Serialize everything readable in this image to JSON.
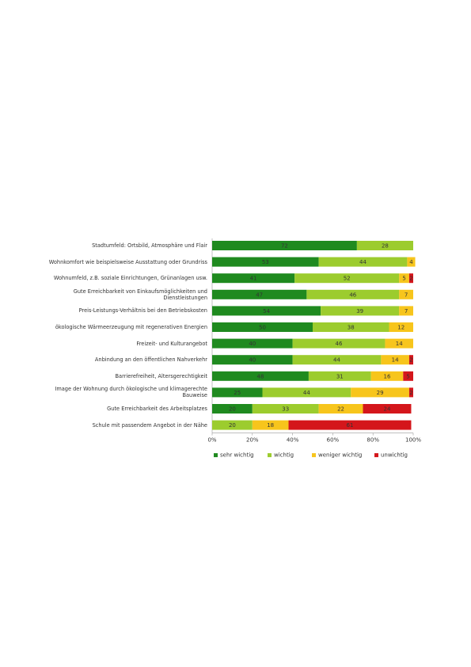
{
  "chart_data": {
    "type": "stacked-bar-horizontal",
    "categories": [
      "Stadtumfeld: Ortsbild, Atmosphäre und Flair",
      "Wohnkomfort wie beispielsweise Ausstattung oder Grundriss",
      "Wohnumfeld, z.B. soziale Einrichtungen, Grünanlagen usw.",
      "Gute Erreichbarkeit von Einkaufsmöglichkeiten und Dienstleistungen",
      "Preis-Leistungs-Verhältnis bei den Betriebskosten",
      "ökologische Wärmeerzeugung mit regenerativen Energien",
      "Freizeit- und Kulturangebot",
      "Anbindung an den öffentlichen Nahverkehr",
      "Barrierefreiheit, Altersgerechtigkeit",
      "Image der Wohnung durch ökologische und klimagerechte Bauweise",
      "Gute Erreichbarkeit des Arbeitsplatzes",
      "Schule mit passendem Angebot in der Nähe"
    ],
    "series": [
      {
        "name": "sehr wichtig",
        "color": "#1f8a1f",
        "values": [
          72,
          53,
          41,
          47,
          54,
          50,
          40,
          40,
          48,
          25,
          20,
          0
        ]
      },
      {
        "name": "wichtig",
        "color": "#9ccc2e",
        "values": [
          28,
          44,
          52,
          46,
          39,
          38,
          46,
          44,
          31,
          44,
          33,
          20
        ]
      },
      {
        "name": "weniger wichtig",
        "color": "#f7c51c",
        "values": [
          0,
          4,
          5,
          7,
          7,
          12,
          14,
          14,
          16,
          29,
          22,
          18
        ]
      },
      {
        "name": "unwichtig",
        "color": "#d4161b",
        "values": [
          0,
          0,
          2,
          0,
          0,
          0,
          0,
          2,
          5,
          2,
          24,
          61
        ]
      }
    ],
    "xlim": [
      0,
      100
    ],
    "xticks": [
      {
        "value": 0,
        "label": "0%"
      },
      {
        "value": 20,
        "label": "20%"
      },
      {
        "value": 40,
        "label": "40%"
      },
      {
        "value": 60,
        "label": "60%"
      },
      {
        "value": 80,
        "label": "80%"
      },
      {
        "value": 100,
        "label": "100%"
      }
    ]
  }
}
